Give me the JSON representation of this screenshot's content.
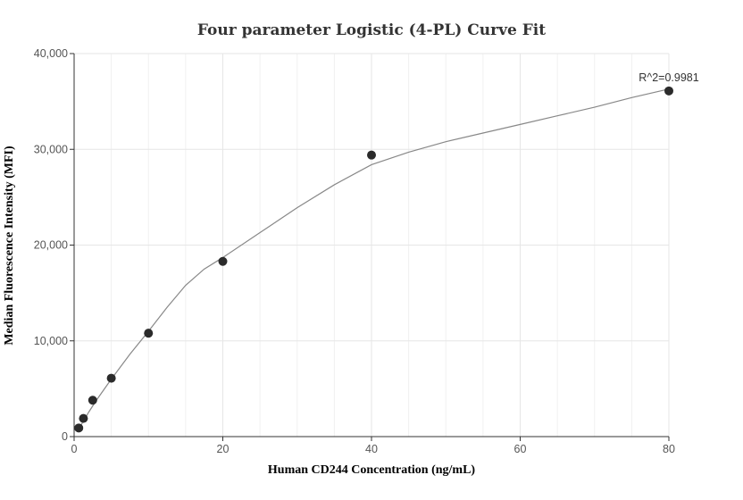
{
  "chart_data": {
    "type": "scatter",
    "title": "Four parameter Logistic (4-PL) Curve Fit",
    "xlabel": "Human CD244 Concentration (ng/mL)",
    "ylabel": "Median Fluorescence Intensity (MFI)",
    "xlim": [
      0,
      80
    ],
    "ylim": [
      0,
      40000
    ],
    "x_ticks": [
      0,
      20,
      40,
      60,
      80
    ],
    "y_ticks": [
      0,
      10000,
      20000,
      30000,
      40000
    ],
    "x_tick_labels": [
      "0",
      "20",
      "40",
      "60",
      "80"
    ],
    "y_tick_labels": [
      "0",
      "10,000",
      "20,000",
      "30,000",
      "40,000"
    ],
    "grid": true,
    "points": {
      "x": [
        0.625,
        1.25,
        2.5,
        5,
        10,
        20,
        40,
        80
      ],
      "y": [
        900,
        1900,
        3800,
        6100,
        10800,
        18300,
        29400,
        36100
      ]
    },
    "fit_curve": {
      "type": "4-PL",
      "x": [
        0.625,
        1,
        2,
        3,
        5,
        7.5,
        10,
        12.5,
        15,
        17.5,
        20,
        25,
        30,
        35,
        40,
        45,
        50,
        55,
        60,
        65,
        70,
        75,
        80
      ],
      "y": [
        800,
        1300,
        2600,
        3800,
        6000,
        8600,
        11000,
        13500,
        15800,
        17500,
        18700,
        21300,
        23900,
        26300,
        28400,
        29700,
        30800,
        31700,
        32600,
        33500,
        34400,
        35400,
        36300
      ]
    },
    "annotation": "R^2=0.9981",
    "colors": {
      "points": "#2b2b2b",
      "curve": "#888888",
      "grid": "#e6e6e6",
      "axis": "#333333"
    }
  }
}
